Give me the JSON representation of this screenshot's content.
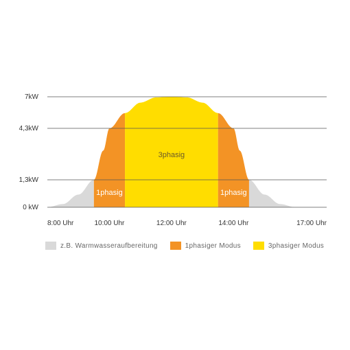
{
  "chart_data": {
    "type": "area",
    "y_ticks": [
      {
        "label": "7kW",
        "value": 7
      },
      {
        "label": "4,3kW",
        "value": 4.3
      },
      {
        "label": "1,3kW",
        "value": 1.3
      },
      {
        "label": "0 kW",
        "value": 0
      }
    ],
    "x_ticks": [
      {
        "label": "8:00 Uhr",
        "value": 8
      },
      {
        "label": "10:00 Uhr",
        "value": 10
      },
      {
        "label": "12:00 Uhr",
        "value": 12
      },
      {
        "label": "14:00 Uhr",
        "value": 14
      },
      {
        "label": "17:00 Uhr",
        "value": 17
      }
    ],
    "xlim": [
      8,
      17
    ],
    "ylim": [
      0,
      7
    ],
    "curve": {
      "x": [
        8,
        8.5,
        9,
        9.5,
        9.8,
        10,
        10.5,
        11,
        11.5,
        12,
        12.5,
        13,
        13.5,
        14,
        14.2,
        14.5,
        15,
        15.5,
        16
      ],
      "y": [
        0,
        0.15,
        0.6,
        1.3,
        3.0,
        4.3,
        5.6,
        6.5,
        6.95,
        7.0,
        6.95,
        6.5,
        5.6,
        4.3,
        3.0,
        1.3,
        0.6,
        0.15,
        0
      ]
    },
    "regions": [
      {
        "id": "grey-left",
        "legend_index": 0,
        "x_from": 8,
        "x_to": 9.5,
        "label": ""
      },
      {
        "id": "orange-left",
        "legend_index": 1,
        "x_from": 9.5,
        "x_to": 10.5,
        "label": "1phasig"
      },
      {
        "id": "yellow-center",
        "legend_index": 2,
        "x_from": 10.5,
        "x_to": 13.5,
        "label": "3phasig"
      },
      {
        "id": "orange-right",
        "legend_index": 1,
        "x_from": 13.5,
        "x_to": 14.5,
        "label": "1phasig"
      },
      {
        "id": "grey-right",
        "legend_index": 0,
        "x_from": 14.5,
        "x_to": 16,
        "label": ""
      }
    ],
    "legend": [
      {
        "label": "z.B. Warmwasseraufbereitung",
        "color": "#d9d9d9"
      },
      {
        "label": "1phasiger Modus",
        "color": "#f39325"
      },
      {
        "label": "3phasiger Modus",
        "color": "#ffdd00"
      }
    ],
    "grid": true
  }
}
